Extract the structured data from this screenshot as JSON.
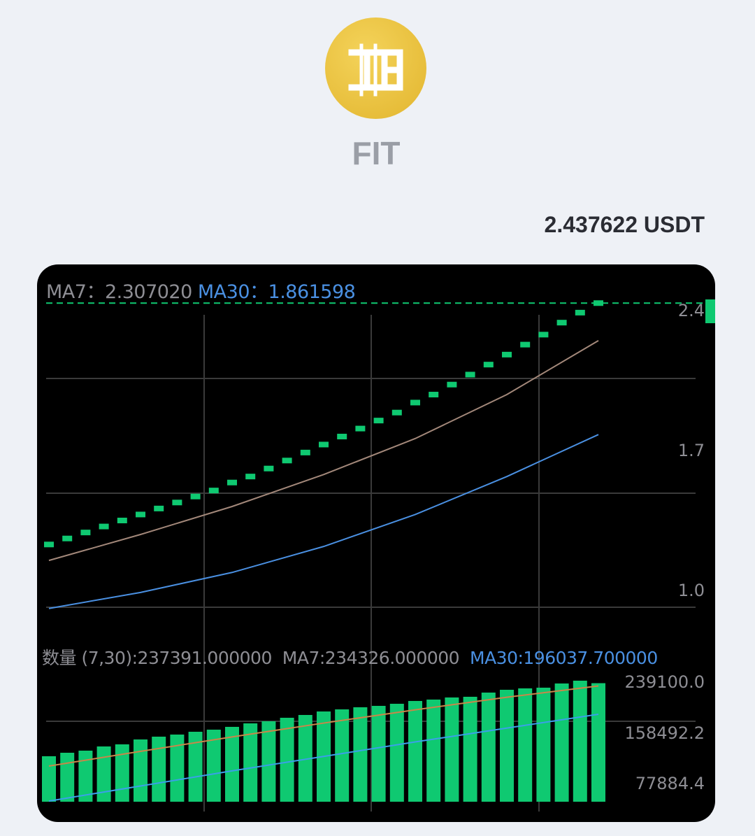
{
  "coin": {
    "symbol": "FIT",
    "icon": "fit-coin-logo",
    "logo_color": "#e9c03f"
  },
  "price_label": "2.437622 USDT",
  "colors": {
    "up": "#0fc971",
    "ma7": "#a3887a",
    "ma30": "#4a90e2",
    "vol_ma7": "#c8874a",
    "vol_ma30": "#3aa0e8",
    "grid": "#3a3a3a"
  },
  "price_chart": {
    "legend": {
      "ma7_label": "MA7：",
      "ma7_value": "2.307020",
      "ma30_label": "MA30：",
      "ma30_value": "1.861598"
    },
    "y_ticks": [
      "2.4",
      "1.7",
      "1.0"
    ],
    "current_price_marker": "2.4"
  },
  "volume_chart": {
    "legend": {
      "vol": "数量 (7,30):237391.000000",
      "ma7": "MA7:234326.000000",
      "ma30": "MA30:196037.700000"
    },
    "y_ticks": [
      "239100.0",
      "158492.2",
      "77884.4"
    ]
  },
  "chart_data": [
    {
      "type": "candlestick",
      "y_ticks": [
        2.4,
        1.7,
        1.0
      ],
      "close": [
        1.23,
        1.26,
        1.29,
        1.32,
        1.35,
        1.38,
        1.41,
        1.44,
        1.47,
        1.5,
        1.54,
        1.57,
        1.61,
        1.65,
        1.69,
        1.73,
        1.77,
        1.81,
        1.85,
        1.89,
        1.94,
        1.98,
        2.03,
        2.08,
        2.13,
        2.18,
        2.23,
        2.28,
        2.34,
        2.39,
        2.437622
      ],
      "ma7_sampled_every_5": [
        1.15,
        1.28,
        1.42,
        1.58,
        1.76,
        1.98,
        2.25
      ],
      "ma30_sampled_every_5": [
        0.91,
        0.99,
        1.09,
        1.22,
        1.38,
        1.57,
        1.78
      ]
    },
    {
      "type": "bar",
      "y_ticks": [
        239100.0,
        158492.2,
        77884.4
      ],
      "values": [
        121250,
        126810,
        130150,
        136820,
        140150,
        147940,
        152390,
        155720,
        160170,
        163510,
        167960,
        173520,
        176850,
        182410,
        186860,
        192420,
        195750,
        199090,
        201320,
        204650,
        209100,
        211320,
        214660,
        215770,
        222440,
        226890,
        229110,
        230220,
        236900,
        241350,
        237391
      ],
      "ma7_sampled_every_5": [
        105700,
        129000,
        152000,
        174000,
        195000,
        215000,
        233000
      ],
      "ma30_sampled_every_5": [
        50000,
        74000,
        98000,
        121000,
        144000,
        166000,
        188000
      ]
    }
  ]
}
